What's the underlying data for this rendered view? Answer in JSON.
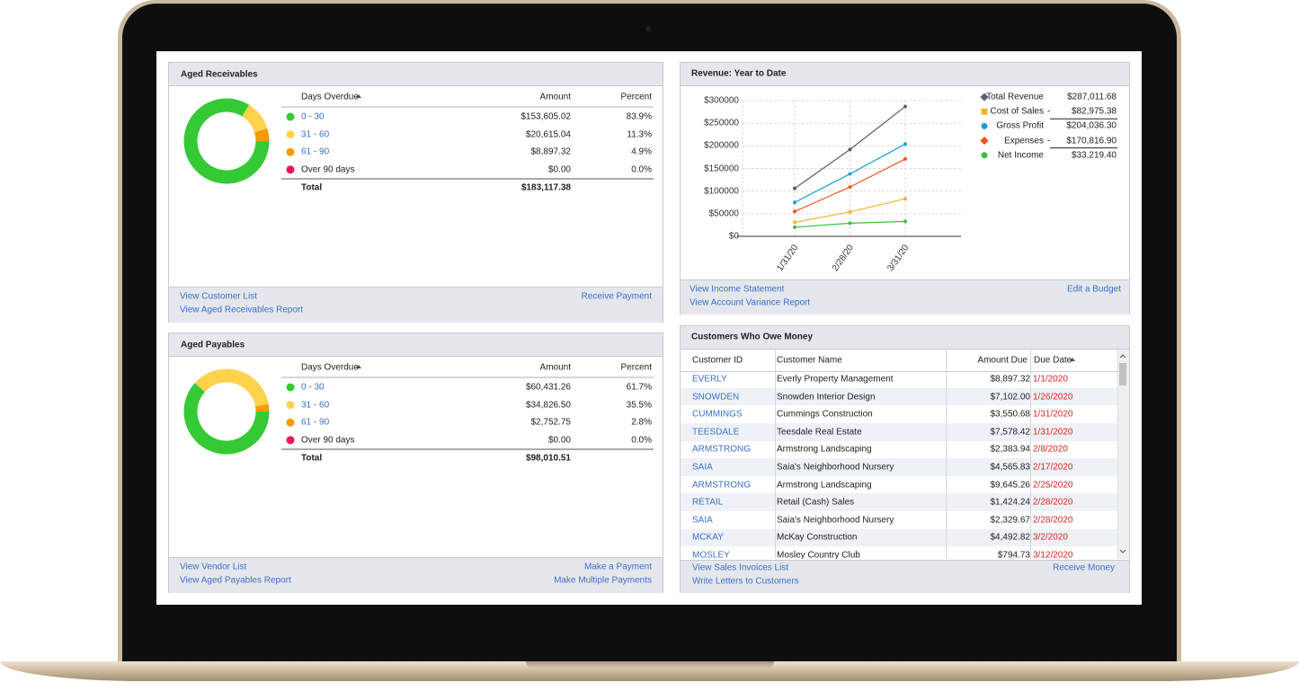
{
  "aged_receivables": {
    "title": "Aged Receivables",
    "columns": [
      "Days Overdue",
      "Amount",
      "Percent"
    ],
    "rows": [
      {
        "label": "0 - 30",
        "link": true,
        "color": "#35c935",
        "amount": "$153,605.02",
        "percent": 83.9,
        "percent_label": "83.9%"
      },
      {
        "label": "31 - 60",
        "link": true,
        "color": "#ffd24d",
        "amount": "$20,615.04",
        "percent": 11.3,
        "percent_label": "11.3%"
      },
      {
        "label": "61 - 90",
        "link": true,
        "color": "#f59a0c",
        "amount": "$8,897.32",
        "percent": 4.9,
        "percent_label": "4.9%"
      },
      {
        "label": "Over 90 days",
        "link": false,
        "color": "#e8175d",
        "amount": "$0.00",
        "percent": 0.0,
        "percent_label": "0.0%"
      }
    ],
    "total": {
      "label": "Total",
      "amount": "$183,117.38"
    },
    "links_left": [
      "View Customer List",
      "View Aged Receivables Report"
    ],
    "links_right": [
      "Receive Payment"
    ]
  },
  "aged_payables": {
    "title": "Aged Payables",
    "columns": [
      "Days Overdue",
      "Amount",
      "Percent"
    ],
    "rows": [
      {
        "label": "0 - 30",
        "link": true,
        "color": "#35c935",
        "amount": "$60,431.26",
        "percent": 61.7,
        "percent_label": "61.7%"
      },
      {
        "label": "31 - 60",
        "link": true,
        "color": "#ffd24d",
        "amount": "$34,826.50",
        "percent": 35.5,
        "percent_label": "35.5%"
      },
      {
        "label": "61 - 90",
        "link": true,
        "color": "#f59a0c",
        "amount": "$2,752.75",
        "percent": 2.8,
        "percent_label": "2.8%"
      },
      {
        "label": "Over 90 days",
        "link": false,
        "color": "#e8175d",
        "amount": "$0.00",
        "percent": 0.0,
        "percent_label": "0.0%"
      }
    ],
    "total": {
      "label": "Total",
      "amount": "$98,010.51"
    },
    "links_left": [
      "View Vendor List",
      "View Aged Payables Report"
    ],
    "links_right": [
      "Make a Payment",
      "Make Multiple Payments"
    ]
  },
  "chart_data": {
    "type": "line",
    "title": "Revenue: Year to Date",
    "categories": [
      "1/31/20",
      "2/28/20",
      "3/31/20"
    ],
    "ylim": [
      0,
      300000
    ],
    "yticks": [
      {
        "value": 0,
        "label": "$0"
      },
      {
        "value": 50000,
        "label": "$50000"
      },
      {
        "value": 100000,
        "label": "$100000"
      },
      {
        "value": 150000,
        "label": "$150000"
      },
      {
        "value": 200000,
        "label": "$200000"
      },
      {
        "value": 250000,
        "label": "$250000"
      },
      {
        "value": 300000,
        "label": "$300000"
      }
    ],
    "grid": true,
    "series": [
      {
        "name": "Total Revenue",
        "color": "#5b5b6e",
        "marker": "diamond",
        "values": [
          106000,
          192000,
          287000
        ],
        "total": "$287,011.68"
      },
      {
        "name": "Cost of Sales",
        "color": "#f7b32b",
        "marker": "square",
        "sign": "-",
        "values": [
          31000,
          54000,
          83000
        ],
        "total": "$82,975.38"
      },
      {
        "name": "Gross Profit",
        "color": "#1a9fd6",
        "marker": "circle",
        "values": [
          75000,
          138000,
          204000
        ],
        "total": "$204,036.30"
      },
      {
        "name": "Expenses",
        "color": "#f4511e",
        "marker": "diamond",
        "sign": "-",
        "values": [
          55000,
          109000,
          171000
        ],
        "total": "$170,816.90"
      },
      {
        "name": "Net Income",
        "color": "#3cbf3c",
        "marker": "circle",
        "values": [
          20000,
          29000,
          33000
        ],
        "total": "$33,219.40"
      }
    ],
    "links_left": [
      "View Income Statement",
      "View Account Variance Report"
    ],
    "links_right": [
      "Edit a Budget"
    ]
  },
  "customers": {
    "title": "Customers Who Owe Money",
    "columns": [
      "Customer ID",
      "Customer Name",
      "Amount Due",
      "Due Date"
    ],
    "rows": [
      [
        "EVERLY",
        "Everly Property Management",
        "$8,897.32",
        "1/1/2020"
      ],
      [
        "SNOWDEN",
        "Snowden Interior Design",
        "$7,102.00",
        "1/26/2020"
      ],
      [
        "CUMMINGS",
        "Cummings Construction",
        "$3,550.68",
        "1/31/2020"
      ],
      [
        "TEESDALE",
        "Teesdale Real Estate",
        "$7,578.42",
        "1/31/2020"
      ],
      [
        "ARMSTRONG",
        "Armstrong Landscaping",
        "$2,383.94",
        "2/8/2020"
      ],
      [
        "SAIA",
        "Saia's Neighborhood Nursery",
        "$4,565.83",
        "2/17/2020"
      ],
      [
        "ARMSTRONG",
        "Armstrong Landscaping",
        "$9,645.26",
        "2/25/2020"
      ],
      [
        "RETAIL",
        "Retail (Cash) Sales",
        "$1,424.24",
        "2/28/2020"
      ],
      [
        "SAIA",
        "Saia's Neighborhood Nursery",
        "$2,329.67",
        "2/28/2020"
      ],
      [
        "MCKAY",
        "McKay Construction",
        "$4,492.82",
        "3/2/2020"
      ],
      [
        "MOSLEY",
        "Mosley Country Club",
        "$794.73",
        "3/12/2020"
      ]
    ],
    "links_left": [
      "View Sales Invoices List",
      "Write Letters to Customers"
    ],
    "links_right": [
      "Receive Money"
    ]
  }
}
